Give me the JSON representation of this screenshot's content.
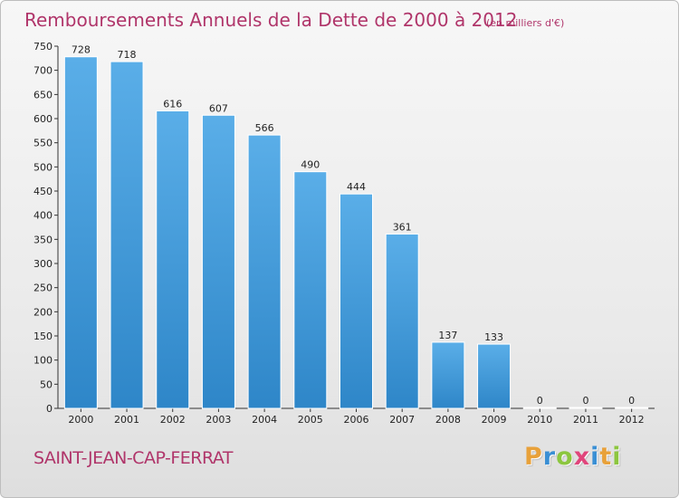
{
  "chart_data": {
    "type": "bar",
    "title": "Remboursements Annuels de la Dette de 2000 à 2012",
    "subtitle": "(en milliers d'€)",
    "categories": [
      "2000",
      "2001",
      "2002",
      "2003",
      "2004",
      "2005",
      "2006",
      "2007",
      "2008",
      "2009",
      "2010",
      "2011",
      "2012"
    ],
    "values": [
      728,
      718,
      616,
      607,
      566,
      490,
      444,
      361,
      137,
      133,
      0,
      0,
      0
    ],
    "ylim": [
      0,
      750
    ],
    "yticks": [
      0,
      50,
      100,
      150,
      200,
      250,
      300,
      350,
      400,
      450,
      500,
      550,
      600,
      650,
      700,
      750
    ],
    "xlabel": "",
    "ylabel": "",
    "grid": false,
    "bar_color": "#2e86c8",
    "bar_color_light": "#5aaee8"
  },
  "footer": {
    "commune": "SAINT-JEAN-CAP-FERRAT",
    "logo_letters": [
      "P",
      "r",
      "o",
      "x",
      "i",
      "t",
      "i"
    ],
    "logo_colors": [
      "#e8a13a",
      "#3a8fd4",
      "#8cc63f",
      "#e0457b",
      "#3a8fd4",
      "#e8a13a",
      "#8cc63f"
    ]
  }
}
